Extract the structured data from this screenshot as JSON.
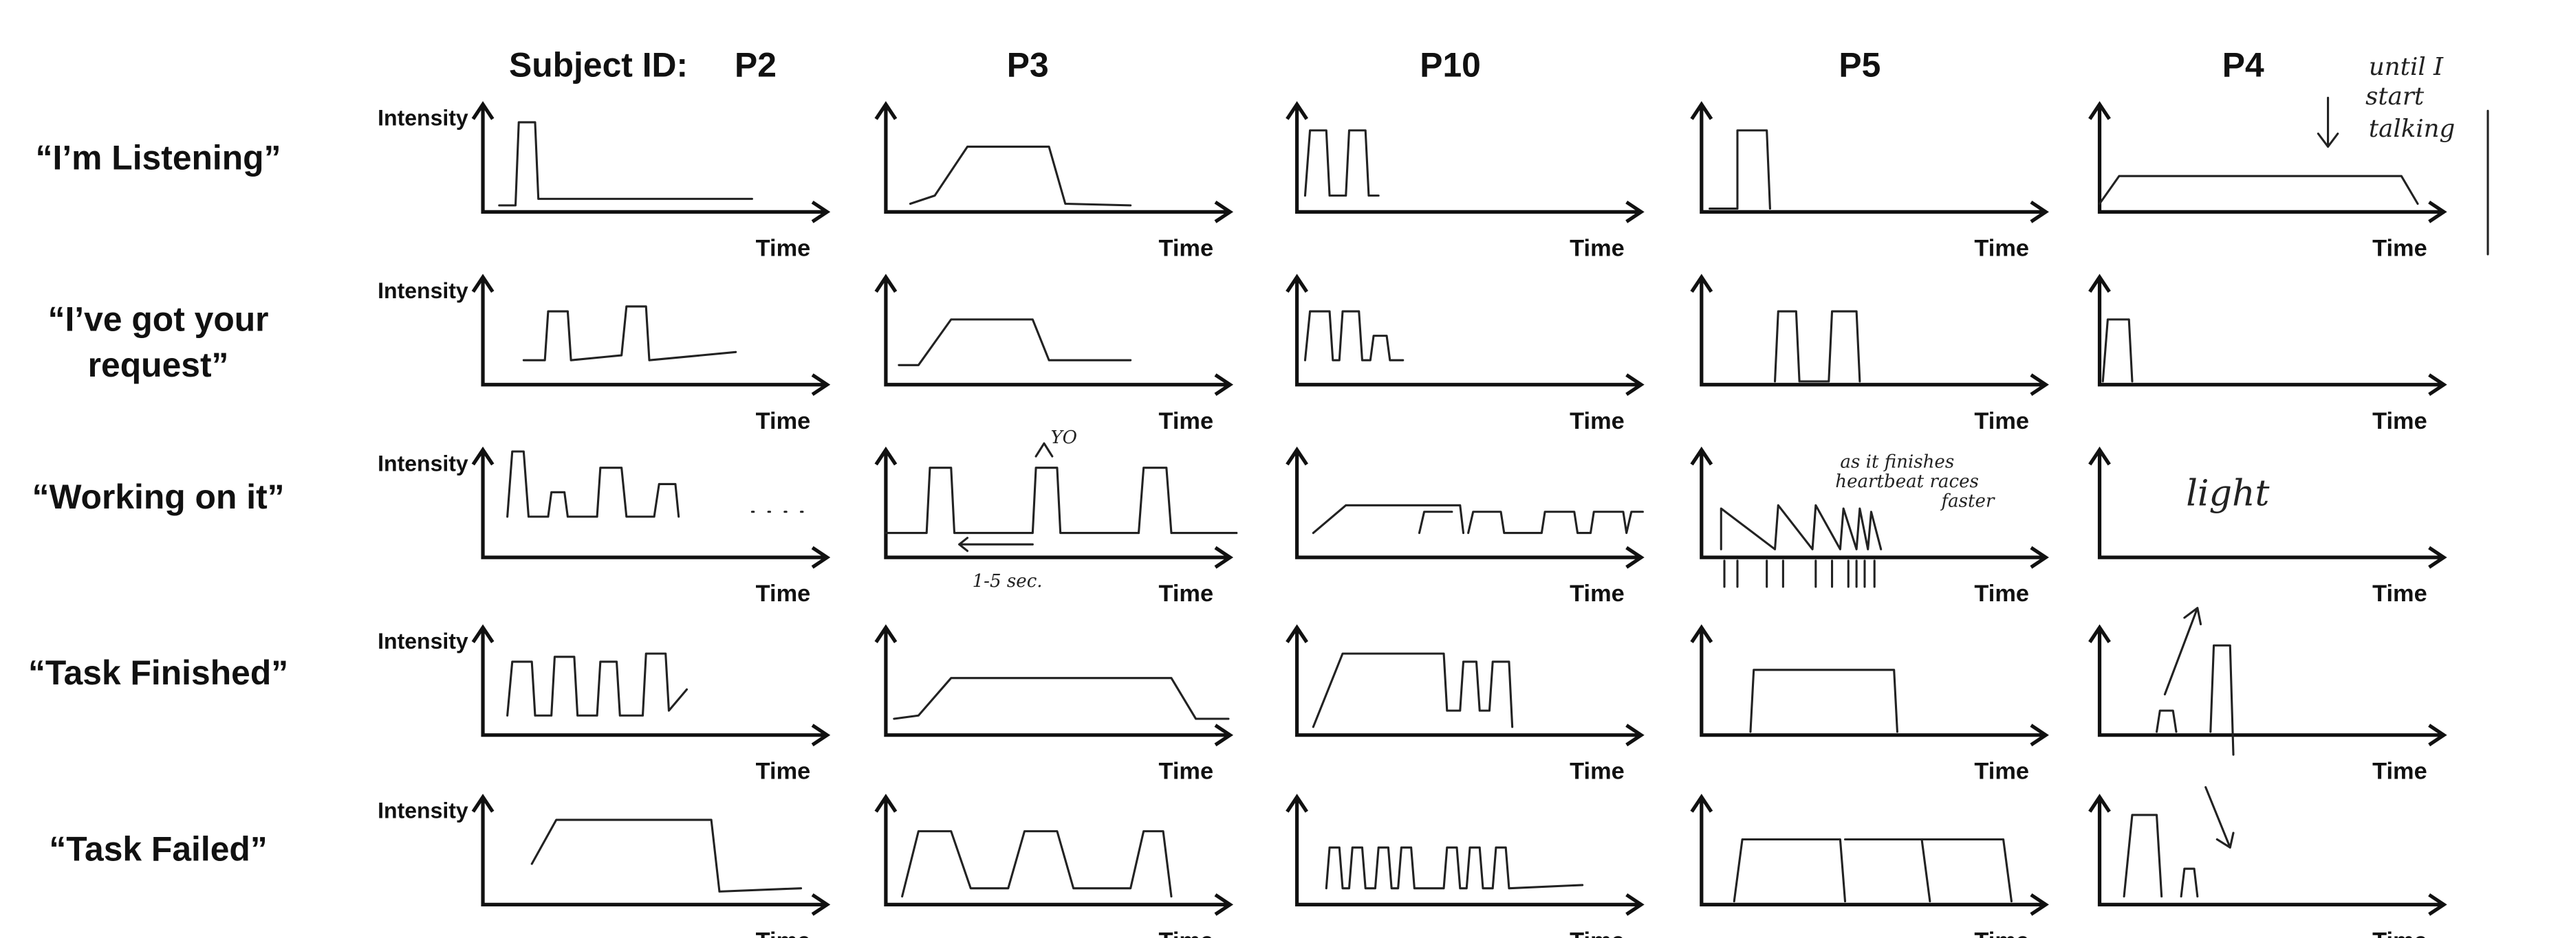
{
  "header": {
    "label": "Subject ID:",
    "subjects": [
      "P2",
      "P3",
      "P10",
      "P5",
      "P4"
    ]
  },
  "rows": [
    {
      "label": [
        "“I’m Listening”"
      ]
    },
    {
      "label": [
        "“I’ve got your",
        "request”"
      ]
    },
    {
      "label": [
        "“Working on it”"
      ]
    },
    {
      "label": [
        "“Task Finished”"
      ]
    },
    {
      "label": [
        "“Task Failed”"
      ]
    }
  ],
  "axis": {
    "y": "Intensity",
    "x": "Time"
  },
  "annotations": [
    "until I",
    "start",
    "talking",
    "YO",
    "1-5 sec.",
    "as it finishes",
    "heartbeat races",
    "faster",
    "light"
  ]
}
